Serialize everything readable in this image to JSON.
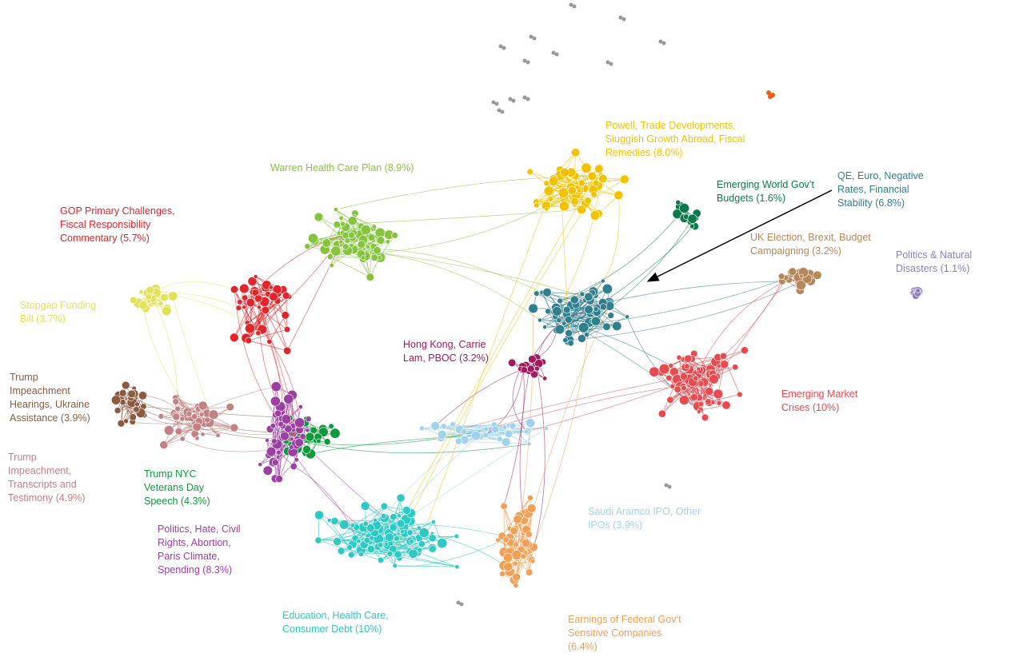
{
  "clusters": [
    {
      "lines": [
        "GOP Primary Challenges,",
        "Fiscal Responsibility",
        "Commentary (5.7%)"
      ],
      "color": "#e0262a"
    },
    {
      "lines": [
        "Warren Health Care Plan (8.9%)"
      ],
      "color": "#86c440"
    },
    {
      "lines": [
        "Powell, Trade Developments,",
        "Sluggish Growth Abroad, Fiscal",
        "Remedies (8.0%)"
      ],
      "color": "#f2c200"
    },
    {
      "lines": [
        "Emerging World Gov’t",
        "Budgets (1.6%)"
      ],
      "color": "#0b7a4b"
    },
    {
      "lines": [
        "QE, Euro, Negative",
        "Rates, Financial",
        "Stability (6.8%)"
      ],
      "color": "#2f7f8d"
    },
    {
      "lines": [
        "UK Election,  Brexit,  Budget",
        "Campaigning  (3.2%)"
      ],
      "color": "#b5875a"
    },
    {
      "lines": [
        "Politics & Natural",
        "Disasters (1.1%)"
      ],
      "color": "#8e7cc3"
    },
    {
      "lines": [
        "Stopgap  Funding",
        "Bill  (3.7%)"
      ],
      "color": "#e2e25a"
    },
    {
      "lines": [
        "Trump",
        "Impeachment",
        "Hearings, Ukraine",
        "Assistance  (3.9%)"
      ],
      "color": "#8b5a40"
    },
    {
      "lines": [
        "Trump",
        "Impeachment,",
        "Transcripts and",
        "Testimony (4.9%)"
      ],
      "color": "#c28283"
    },
    {
      "lines": [
        "Trump NYC",
        "Veterans Day",
        "Speech   (4.3%)"
      ],
      "color": "#0e9a3a"
    },
    {
      "lines": [
        "Politics, Hate, Civil",
        "Rights, Abortion,",
        "Paris Climate,",
        "Spending  (8.3%)"
      ],
      "color": "#9b3fa0"
    },
    {
      "lines": [
        "Hong Kong,  Carrie",
        "Lam,  PBOC  (3.2%)"
      ],
      "color": "#a3195f"
    },
    {
      "lines": [
        "Emerging Market",
        "Crises (10%)"
      ],
      "color": "#e84a4e"
    },
    {
      "lines": [
        "Saudi  Aramco IPO, Other",
        "IPOs (3.9%)"
      ],
      "color": "#9fd3ea"
    },
    {
      "lines": [
        "Education,  Health Care,",
        "Consumer Debt (10%)"
      ],
      "color": "#2ec9c2"
    },
    {
      "lines": [
        "Earnings of Federal Gov’t",
        "Sensitive Companies",
        "(6.4%)"
      ],
      "color": "#f2a055"
    }
  ]
}
